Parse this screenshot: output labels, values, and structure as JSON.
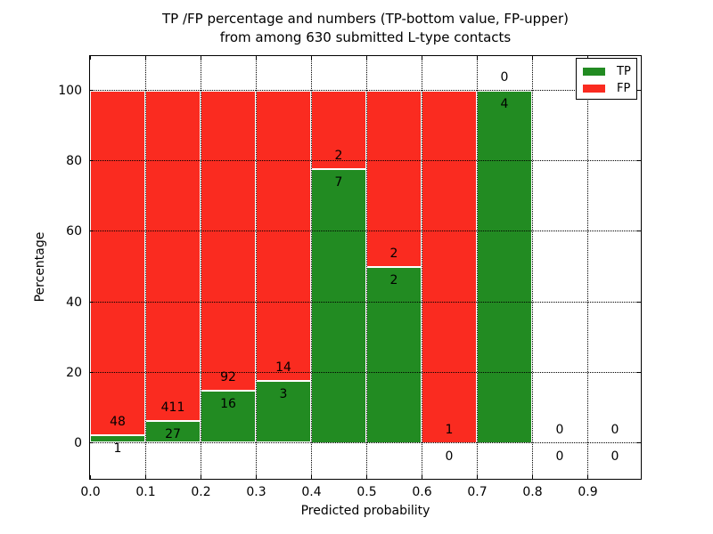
{
  "chart_data": {
    "type": "bar",
    "stacked": true,
    "normalized": "percent_of_bin_total",
    "title_lines": [
      "TP /FP percentage and numbers (TP-bottom value, FP-upper)",
      "from among 630 submitted L-type contacts"
    ],
    "xlabel": "Predicted probability",
    "ylabel": "Percentage",
    "xlim": [
      0.0,
      1.0
    ],
    "ylim": [
      -10,
      110
    ],
    "x_tick_labels": [
      "0.0",
      "0.1",
      "0.2",
      "0.3",
      "0.4",
      "0.5",
      "0.6",
      "0.7",
      "0.8",
      "0.9"
    ],
    "y_tick_values": [
      0,
      20,
      40,
      60,
      80,
      100
    ],
    "grid": "dotted black, on top of bars",
    "legend": {
      "position": "upper right",
      "entries": [
        {
          "label": "TP",
          "color": "#228b22"
        },
        {
          "label": "FP",
          "color": "#fa2b20"
        }
      ]
    },
    "bins": [
      {
        "range": "0.0-0.1",
        "tp": 1,
        "fp": 48
      },
      {
        "range": "0.1-0.2",
        "tp": 27,
        "fp": 411
      },
      {
        "range": "0.2-0.3",
        "tp": 16,
        "fp": 92
      },
      {
        "range": "0.3-0.4",
        "tp": 3,
        "fp": 14
      },
      {
        "range": "0.4-0.5",
        "tp": 7,
        "fp": 2
      },
      {
        "range": "0.5-0.6",
        "tp": 2,
        "fp": 2
      },
      {
        "range": "0.6-0.7",
        "tp": 0,
        "fp": 1
      },
      {
        "range": "0.7-0.8",
        "tp": 4,
        "fp": 0
      },
      {
        "range": "0.8-0.9",
        "tp": 0,
        "fp": 0
      },
      {
        "range": "0.9-1.0",
        "tp": 0,
        "fp": 0
      }
    ],
    "colors": {
      "tp_green": "#228b22",
      "fp_red": "#fa2b20",
      "bar_edge": "#ffffff",
      "axes": "#000000",
      "background": "#ffffff"
    }
  }
}
